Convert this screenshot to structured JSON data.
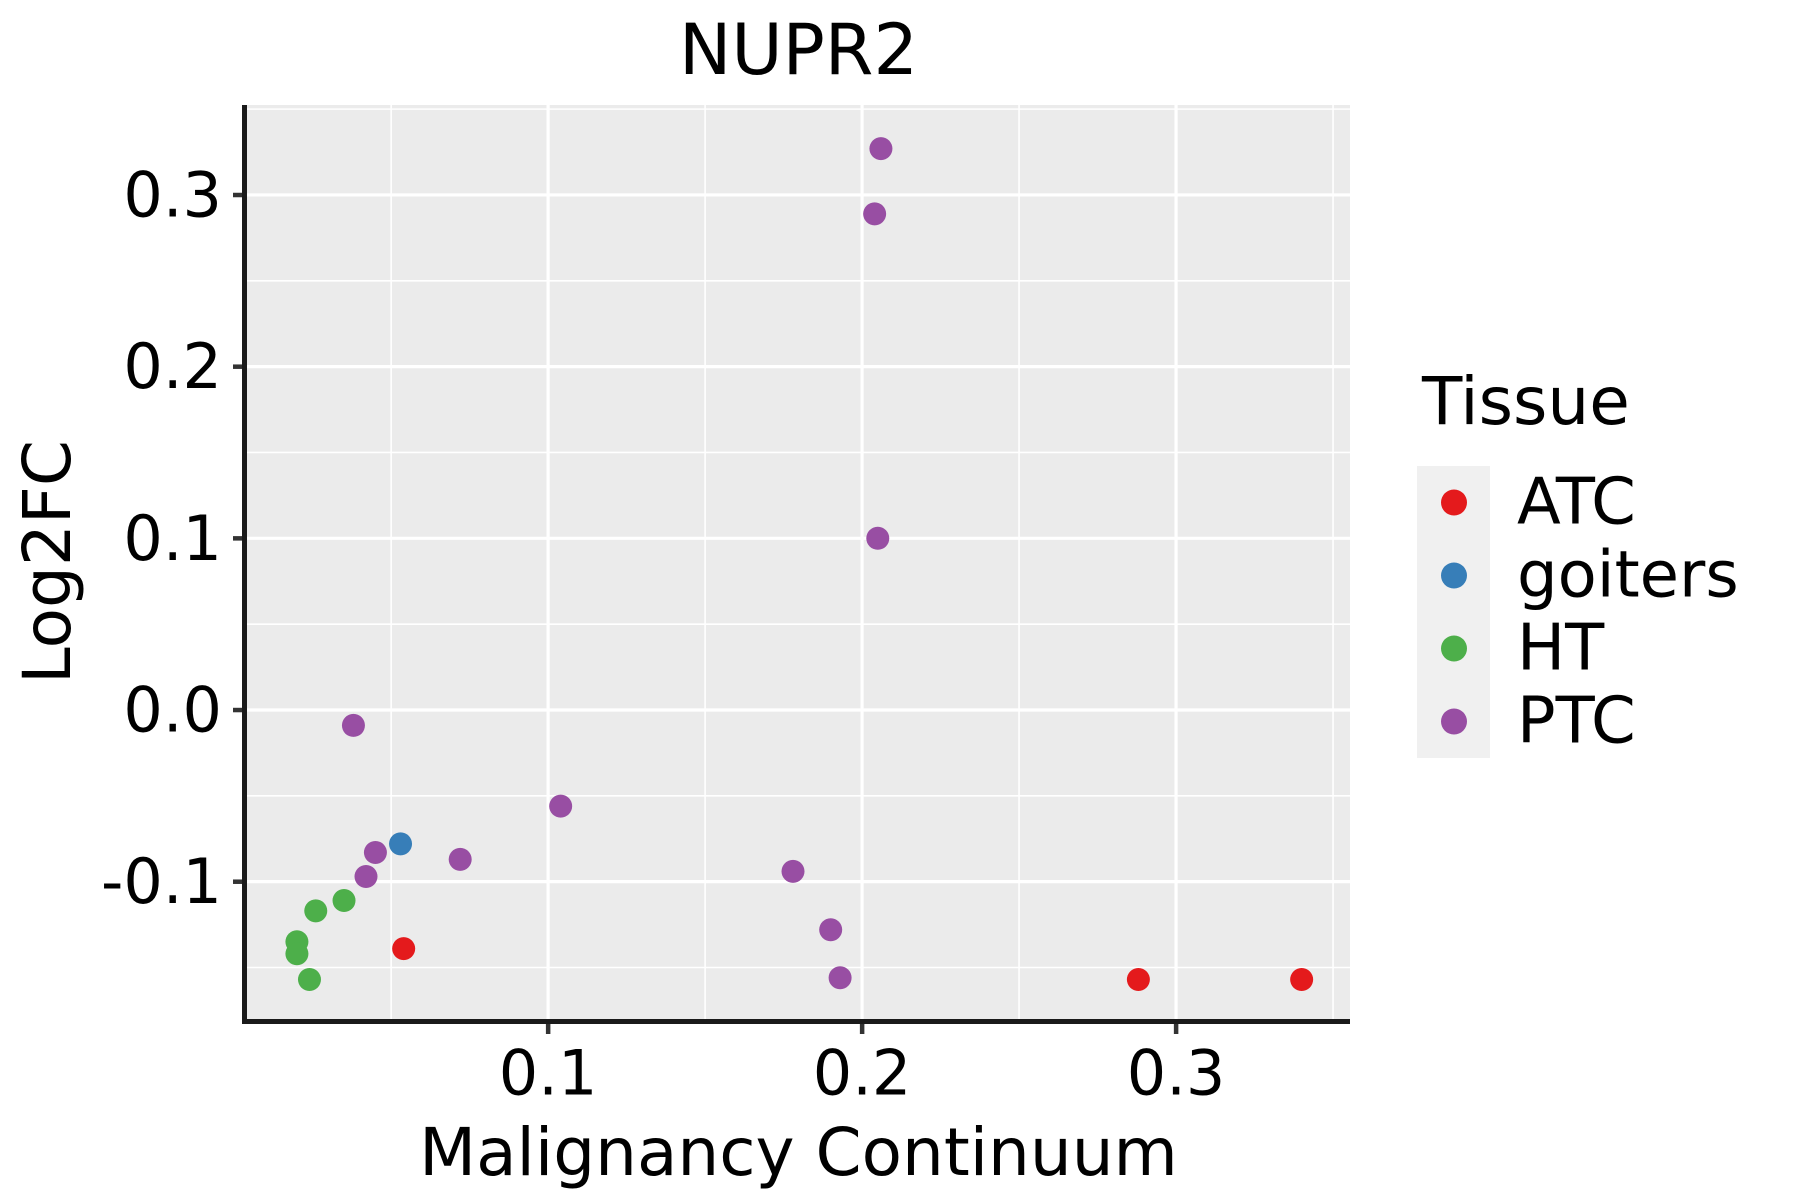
{
  "chart_data": {
    "type": "scatter",
    "title": "NUPR2",
    "xlabel": "Malignancy Continuum",
    "ylabel": "Log2FC",
    "legend_title": "Tissue",
    "xlim": [
      0.0041,
      0.3554
    ],
    "ylim": [
      -0.18,
      0.3524
    ],
    "x_major_ticks": [
      0.1,
      0.2,
      0.3
    ],
    "x_tick_labels": [
      "0.1",
      "0.2",
      "0.3"
    ],
    "x_minor_ticks": [
      0.05,
      0.15,
      0.25,
      0.35
    ],
    "y_major_ticks": [
      -0.1,
      0.0,
      0.1,
      0.2,
      0.3
    ],
    "y_tick_labels": [
      "-0.1",
      "0.0",
      "0.1",
      "0.2",
      "0.3"
    ],
    "y_minor_ticks": [
      -0.15,
      -0.05,
      0.05,
      0.15,
      0.25,
      0.35
    ],
    "grid": true,
    "legend_position": "right",
    "series": [
      {
        "name": "ATC",
        "color": "#E41A1C",
        "points": [
          [
            0.054,
            -0.139
          ],
          [
            0.288,
            -0.157
          ],
          [
            0.34,
            -0.157
          ]
        ]
      },
      {
        "name": "goiters",
        "color": "#377EB8",
        "points": [
          [
            0.053,
            -0.078
          ]
        ]
      },
      {
        "name": "HT",
        "color": "#4DAF4A",
        "points": [
          [
            0.02,
            -0.135
          ],
          [
            0.02,
            -0.142
          ],
          [
            0.024,
            -0.157
          ],
          [
            0.026,
            -0.117
          ],
          [
            0.035,
            -0.111
          ]
        ]
      },
      {
        "name": "PTC",
        "color": "#984EA3",
        "points": [
          [
            0.206,
            0.327
          ],
          [
            0.204,
            0.289
          ],
          [
            0.205,
            0.1
          ],
          [
            0.038,
            -0.009
          ],
          [
            0.104,
            -0.056
          ],
          [
            0.045,
            -0.083
          ],
          [
            0.072,
            -0.087
          ],
          [
            0.042,
            -0.097
          ],
          [
            0.178,
            -0.094
          ],
          [
            0.19,
            -0.128
          ],
          [
            0.193,
            -0.156
          ]
        ]
      }
    ],
    "point_radius": 11.5,
    "legend_dot_radius": 13,
    "colors": {
      "panel_background": "#EBEBEB",
      "gridline": "#FFFFFF",
      "axis_line": "#1A1A1A",
      "tick_mark": "#333333",
      "text": "#000000",
      "legend_key_background": "#F0F0F0"
    }
  }
}
